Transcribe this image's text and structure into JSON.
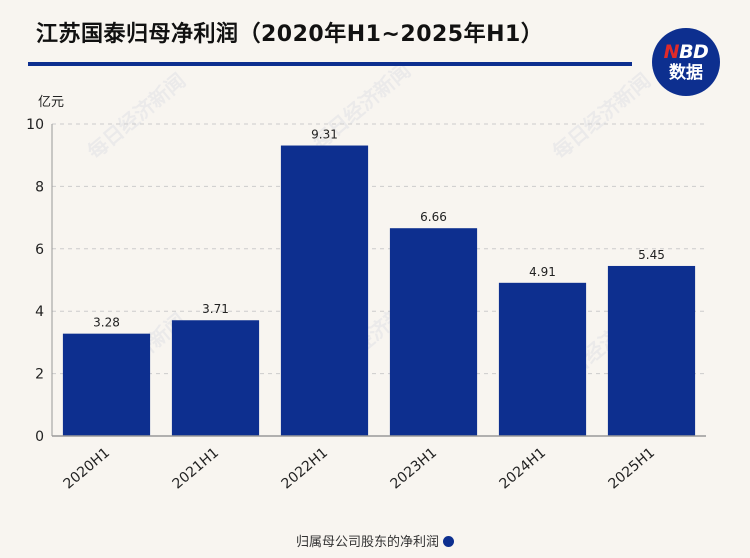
{
  "header": {
    "title": "江苏国泰归母净利润（2020年H1~2025年H1）",
    "logo_top": "NBD",
    "logo_bottom": "数据"
  },
  "watermark_text": "每日经济新闻",
  "chart_data": {
    "type": "bar",
    "title": "江苏国泰归母净利润（2020年H1~2025年H1）",
    "unit_label": "亿元",
    "categories": [
      "2020H1",
      "2021H1",
      "2022H1",
      "2023H1",
      "2024H1",
      "2025H1"
    ],
    "series": [
      {
        "name": "归属母公司股东的净利润",
        "values": [
          3.28,
          3.71,
          9.31,
          6.66,
          4.91,
          5.45
        ]
      }
    ],
    "data_labels": [
      "3.28",
      "3.71",
      "9.31",
      "6.66",
      "4.91",
      "5.45"
    ],
    "ylim": [
      0,
      10
    ],
    "yticks": [
      0,
      2,
      4,
      6,
      8,
      10
    ],
    "grid": true,
    "legend_position": "bottom",
    "colors": {
      "bar": "#0d2f8f",
      "grid": "#cccccc",
      "axis": "#999999"
    }
  }
}
